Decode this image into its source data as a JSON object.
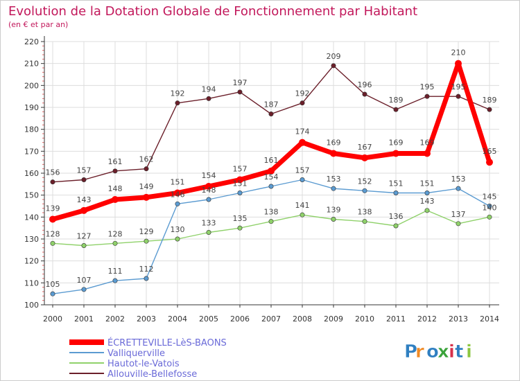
{
  "chart_data": {
    "type": "line",
    "title": "Evolution de la Dotation Globale de Fonctionnement par Habitant",
    "subtitle": "(en € et par an)",
    "xlabel": "",
    "ylabel": "",
    "ylim": [
      100,
      220
    ],
    "yticks": [
      100,
      110,
      120,
      130,
      140,
      150,
      160,
      170,
      180,
      190,
      200,
      210,
      220
    ],
    "grid": true,
    "legend_position": "bottom-left",
    "categories": [
      "2000",
      "2001",
      "2002",
      "2003",
      "2004",
      "2005",
      "2006",
      "2007",
      "2008",
      "2009",
      "2010",
      "2011",
      "2012",
      "2013",
      "2014"
    ],
    "series": [
      {
        "name": "Allouville-Bellefosse",
        "color": "#6b1f2a",
        "values": [
          156,
          157,
          161,
          162,
          192,
          194,
          197,
          187,
          192,
          209,
          196,
          189,
          195,
          195,
          189
        ],
        "labels": [
          "156",
          "157",
          "161",
          "162",
          "192",
          "194",
          "197",
          "187",
          "192",
          "209",
          "196",
          "189",
          "195",
          "195",
          "189"
        ]
      },
      {
        "name": "Hautot-le-Vatois",
        "color": "#8fd16a",
        "values": [
          128,
          127,
          128,
          129,
          130,
          133,
          135,
          138,
          141,
          139,
          138,
          136,
          143,
          137,
          140
        ],
        "labels": [
          "128",
          "127",
          "128",
          "129",
          "130",
          "133",
          "135",
          "138",
          "141",
          "139",
          "138",
          "136",
          "143",
          "137",
          "140"
        ]
      },
      {
        "name": "Valliquerville",
        "color": "#5b9bd1",
        "values": [
          105,
          107,
          111,
          112,
          146,
          148,
          151,
          154,
          157,
          153,
          152,
          151,
          151,
          153,
          145
        ],
        "labels": [
          "105",
          "107",
          "111",
          "112",
          "146",
          "148",
          "151",
          "154",
          "157",
          "153",
          "152",
          "151",
          "151",
          "153",
          "145"
        ]
      },
      {
        "name": "ÉCRETTEVILLE-LèS-BAONS",
        "color": "#ff0000",
        "values": [
          139,
          143,
          148,
          149,
          151,
          154,
          157,
          161,
          174,
          169,
          167,
          169,
          169,
          210,
          165
        ],
        "labels": [
          "139",
          "143",
          "148",
          "149",
          "151",
          "154",
          "157",
          "161",
          "174",
          "169",
          "167",
          "169",
          "169",
          "210",
          "165"
        ]
      }
    ],
    "legend": [
      "ÉCRETTEVILLE-LèS-BAONS",
      "Valliquerville",
      "Hautot-le-Vatois",
      "Allouville-Bellefosse"
    ]
  },
  "logo": {
    "text": "Proxiti",
    "colors": [
      "#2f7fc1",
      "#f08a24",
      "#2f7fc1",
      "#3aa33a",
      "#d6304a",
      "#2f7fc1",
      "#8cc63f"
    ]
  },
  "colors": {
    "title": "#c2185b",
    "axis": "#333333",
    "grid": "#dddddd",
    "legend_text": "#6a6ad8",
    "label": "#444444"
  }
}
